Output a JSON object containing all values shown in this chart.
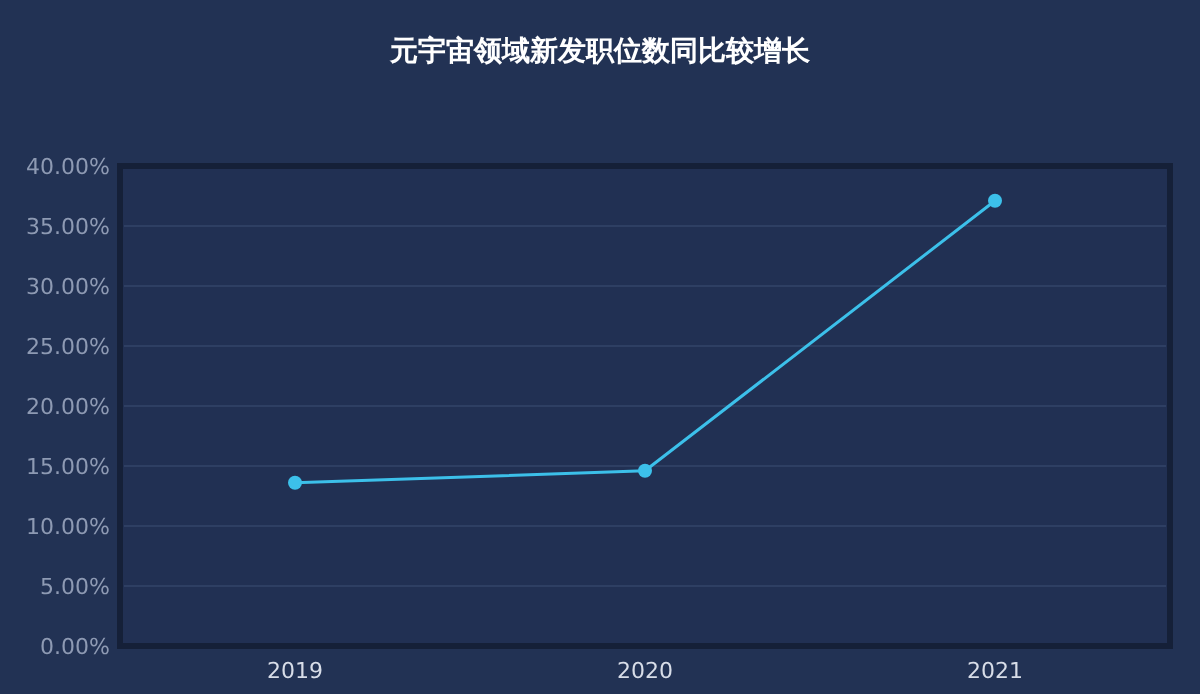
{
  "chart_data": {
    "type": "line",
    "title": "元宇宙领域新发职位数同比较增长",
    "categories": [
      "2019",
      "2020",
      "2021"
    ],
    "series": [
      {
        "color": "#3cc0ea",
        "values": [
          13.6,
          14.6,
          37.1
        ]
      }
    ],
    "ylim": [
      0,
      40
    ],
    "yticks": [
      {
        "value": 0,
        "label": "0.00%"
      },
      {
        "value": 5,
        "label": "5.00%"
      },
      {
        "value": 10,
        "label": "10.00%"
      },
      {
        "value": 15,
        "label": "15.00%"
      },
      {
        "value": 20,
        "label": "20.00%"
      },
      {
        "value": 25,
        "label": "25.00%"
      },
      {
        "value": 30,
        "label": "30.00%"
      },
      {
        "value": 35,
        "label": "35.00%"
      },
      {
        "value": 40,
        "label": "40.00%"
      }
    ],
    "grid": "y",
    "marker": "circle",
    "line_style": "solid"
  }
}
